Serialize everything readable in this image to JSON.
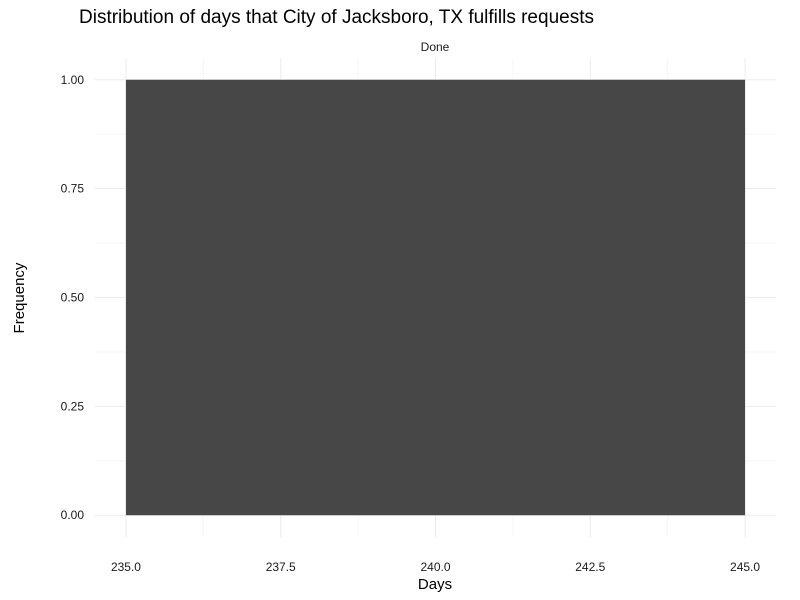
{
  "chart_data": {
    "type": "bar",
    "title": "Distribution of days that City of Jacksboro, TX fulfills requests",
    "facet_label": "Done",
    "xlabel": "Days",
    "ylabel": "Frequency",
    "xlim": [
      234.5,
      245.5
    ],
    "ylim": [
      -0.05,
      1.05
    ],
    "x_ticks": [
      235.0,
      237.5,
      240.0,
      242.5,
      245.0
    ],
    "x_tick_labels": [
      "235.0",
      "237.5",
      "240.0",
      "242.5",
      "245.0"
    ],
    "y_ticks": [
      0.0,
      0.25,
      0.5,
      0.75,
      1.0
    ],
    "y_tick_labels": [
      "0.00",
      "0.25",
      "0.50",
      "0.75",
      "1.00"
    ],
    "bars": [
      {
        "x_start": 235.0,
        "x_end": 245.0,
        "value": 1.0
      }
    ],
    "grid": true,
    "bar_color": "#474747"
  }
}
